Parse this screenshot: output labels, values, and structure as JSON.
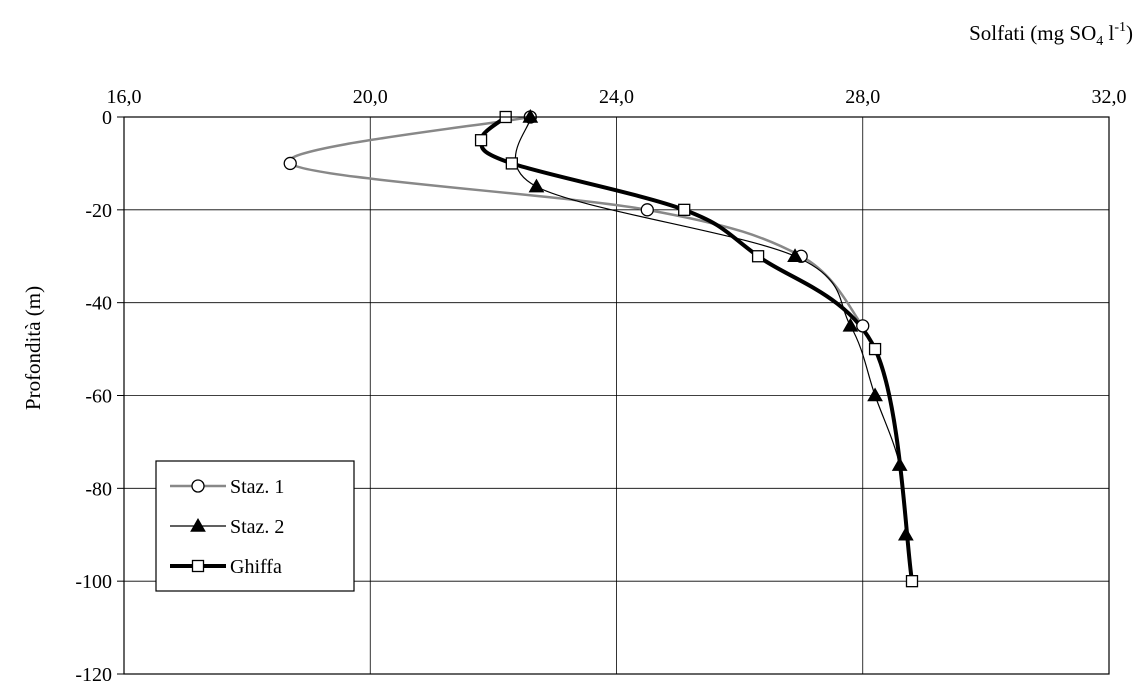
{
  "chart_data": {
    "type": "line",
    "x_axis": {
      "label_prefix": "Solfati (mg SO",
      "label_sub": "4",
      "label_mid": " l",
      "label_sup": "-1",
      "label_suffix": ")",
      "range": [
        16,
        32
      ],
      "ticks": [
        16,
        20,
        24,
        28,
        32
      ],
      "tick_labels": [
        "16,0",
        "20,0",
        "24,0",
        "28,0",
        "32,0"
      ],
      "position": "top"
    },
    "y_axis": {
      "label": "Profondità (m)",
      "range": [
        -120,
        0
      ],
      "ticks": [
        0,
        -20,
        -40,
        -60,
        -80,
        -100,
        -120
      ],
      "tick_labels": [
        "0",
        "-20",
        "-40",
        "-60",
        "-80",
        "-100",
        "-120"
      ]
    },
    "grid": true,
    "legend": "bottom-left",
    "series": [
      {
        "name": "Staz. 1",
        "marker": "circle-open",
        "color": "#888888",
        "line_width": 2.5,
        "points": [
          [
            22.6,
            0
          ],
          [
            18.7,
            -10
          ],
          [
            24.5,
            -20
          ],
          [
            27.0,
            -30
          ],
          [
            28.0,
            -45
          ]
        ]
      },
      {
        "name": "Staz. 2",
        "marker": "triangle-filled",
        "color": "#000000",
        "line_width": 1.2,
        "points": [
          [
            22.6,
            0
          ],
          [
            22.7,
            -15
          ],
          [
            26.9,
            -30
          ],
          [
            27.8,
            -45
          ],
          [
            28.2,
            -60
          ],
          [
            28.6,
            -75
          ],
          [
            28.7,
            -90
          ]
        ]
      },
      {
        "name": "Ghiffa",
        "marker": "square-open",
        "color": "#000000",
        "line_width": 4,
        "points": [
          [
            22.2,
            0
          ],
          [
            21.8,
            -5
          ],
          [
            22.3,
            -10
          ],
          [
            25.1,
            -20
          ],
          [
            26.3,
            -30
          ],
          [
            28.2,
            -50
          ],
          [
            28.8,
            -100
          ]
        ]
      }
    ]
  }
}
